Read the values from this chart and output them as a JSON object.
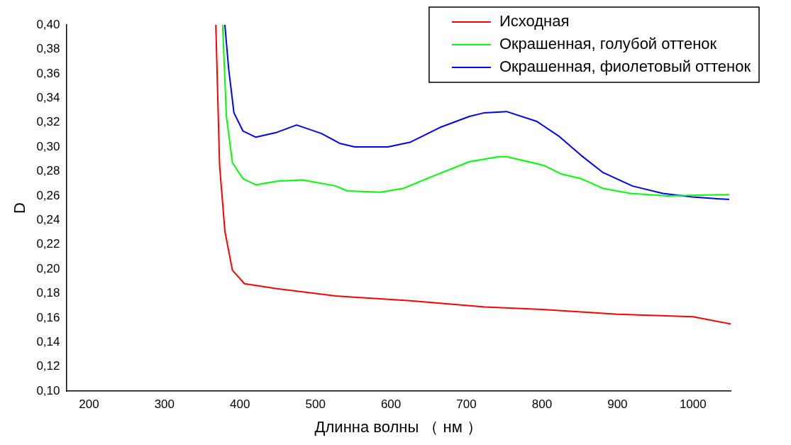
{
  "chart_data": {
    "type": "line",
    "xlabel": "Длинна волны （ нм ）",
    "ylabel": "D",
    "xlim": [
      170,
      1050
    ],
    "xticks": [
      200,
      300,
      400,
      500,
      600,
      700,
      800,
      900,
      1000
    ],
    "ylim": [
      0.1,
      0.4
    ],
    "yticks": [
      {
        "value": 0.1,
        "label": "0,10"
      },
      {
        "value": 0.12,
        "label": "0,12"
      },
      {
        "value": 0.14,
        "label": "0,14"
      },
      {
        "value": 0.16,
        "label": "0,16"
      },
      {
        "value": 0.18,
        "label": "0,18"
      },
      {
        "value": 0.2,
        "label": "0,20"
      },
      {
        "value": 0.22,
        "label": "0,22"
      },
      {
        "value": 0.24,
        "label": "0,24"
      },
      {
        "value": 0.26,
        "label": "0,26"
      },
      {
        "value": 0.28,
        "label": "0,28"
      },
      {
        "value": 0.3,
        "label": "0,30"
      },
      {
        "value": 0.32,
        "label": "0,32"
      },
      {
        "value": 0.34,
        "label": "0,34"
      },
      {
        "value": 0.36,
        "label": "0,36"
      },
      {
        "value": 0.38,
        "label": "0,38"
      },
      {
        "value": 0.4,
        "label": "0,40"
      }
    ],
    "grid": false,
    "legend": "top right",
    "marker": "none",
    "line_style": "solid",
    "series": [
      {
        "name": "Исходная",
        "color": "#ff0000",
        "x": [
          368,
          373,
          380,
          390,
          406,
          449,
          527,
          626,
          724,
          800,
          900,
          1000,
          1050
        ],
        "values": [
          0.4,
          0.285,
          0.231,
          0.199,
          0.188,
          0.184,
          0.178,
          0.174,
          0.169,
          0.167,
          0.163,
          0.161,
          0.155
        ]
      },
      {
        "name": "Окрашенная, голубой оттенок",
        "color": "#00ff00",
        "x": [
          377,
          382,
          390,
          404,
          421,
          449,
          483,
          527,
          542,
          586,
          616,
          655,
          704,
          743,
          753,
          802,
          825,
          852,
          881,
          917,
          966,
          1048
        ],
        "values": [
          0.4,
          0.325,
          0.287,
          0.274,
          0.269,
          0.272,
          0.273,
          0.268,
          0.264,
          0.263,
          0.266,
          0.276,
          0.288,
          0.292,
          0.292,
          0.285,
          0.278,
          0.274,
          0.266,
          0.262,
          0.26,
          0.261
        ]
      },
      {
        "name": "Окрашенная, фиолетовый оттенок",
        "color": "#0000ff",
        "x": [
          380,
          385,
          392,
          404,
          421,
          449,
          475,
          508,
          532,
          552,
          596,
          626,
          665,
          704,
          724,
          753,
          793,
          822,
          852,
          881,
          920,
          960,
          999,
          1048
        ],
        "values": [
          0.4,
          0.364,
          0.328,
          0.313,
          0.308,
          0.312,
          0.318,
          0.311,
          0.303,
          0.3,
          0.3,
          0.304,
          0.316,
          0.325,
          0.328,
          0.329,
          0.321,
          0.309,
          0.293,
          0.279,
          0.268,
          0.262,
          0.259,
          0.257
        ]
      }
    ]
  }
}
